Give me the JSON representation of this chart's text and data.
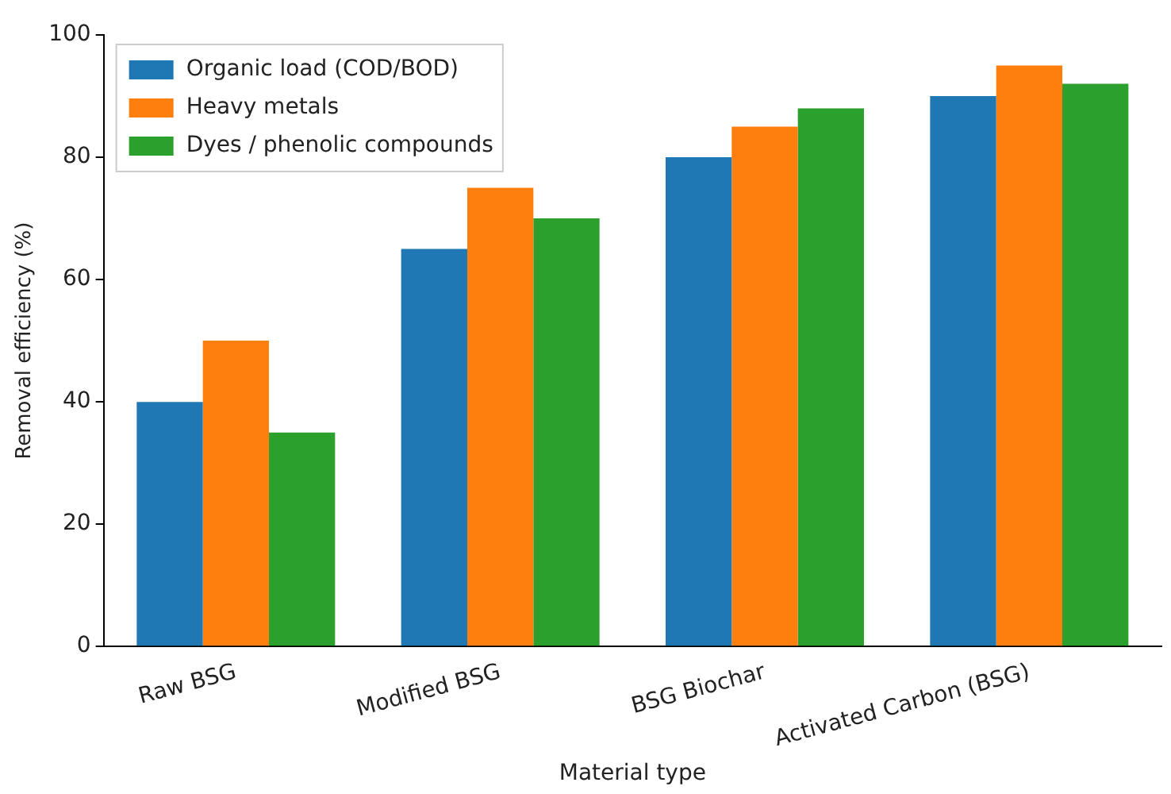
{
  "chart_data": {
    "type": "bar",
    "xlabel": "Material type",
    "ylabel": "Removal efficiency (%)",
    "categories": [
      "Raw BSG",
      "Modified BSG",
      "BSG Biochar",
      "Activated Carbon (BSG)"
    ],
    "series": [
      {
        "name": "Organic load (COD/BOD)",
        "color": "#1f77b4",
        "values": [
          40,
          65,
          80,
          90
        ]
      },
      {
        "name": "Heavy metals",
        "color": "#ff7f0e",
        "values": [
          50,
          75,
          85,
          95
        ]
      },
      {
        "name": "Dyes / phenolic compounds",
        "color": "#2ca02c",
        "values": [
          35,
          70,
          88,
          92
        ]
      }
    ],
    "ylim": [
      0,
      100
    ],
    "yticks": [
      0,
      20,
      40,
      60,
      80,
      100
    ],
    "grid": false,
    "legend": "top left"
  }
}
